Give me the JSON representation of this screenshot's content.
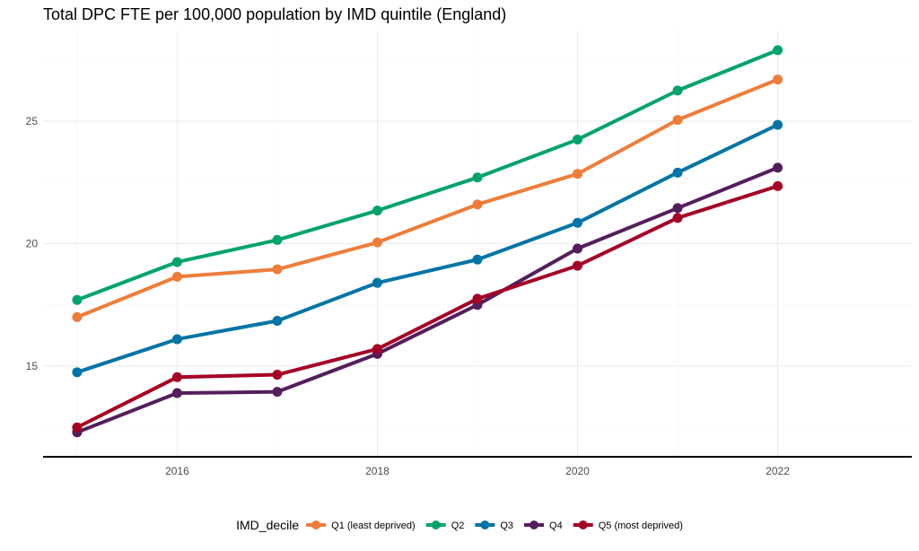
{
  "chart_data": {
    "type": "line",
    "title": "Total DPC FTE per 100,000 population by IMD quintile (England)",
    "xlabel": "",
    "ylabel": "",
    "x": [
      2015,
      2016,
      2017,
      2018,
      2019,
      2020,
      2021,
      2022
    ],
    "xlim": [
      2014.66,
      2023.34
    ],
    "ylim": [
      11.3,
      28.7
    ],
    "x_ticks": [
      2016,
      2018,
      2020,
      2022
    ],
    "y_ticks": [
      15,
      20,
      25
    ],
    "grid": true,
    "legend_position": "bottom",
    "legend_title": "IMD_decile",
    "series": [
      {
        "name": "Q1 (least deprived)",
        "color": "#EE7D3A",
        "values": [
          17.0,
          18.65,
          18.95,
          20.05,
          21.6,
          22.85,
          25.05,
          26.7
        ]
      },
      {
        "name": "Q2",
        "color": "#00A36C",
        "values": [
          17.7,
          19.25,
          20.15,
          21.35,
          22.7,
          24.25,
          26.25,
          27.9
        ]
      },
      {
        "name": "Q3",
        "color": "#0074A6",
        "values": [
          14.75,
          16.1,
          16.85,
          18.4,
          19.35,
          20.85,
          22.9,
          24.85
        ]
      },
      {
        "name": "Q4",
        "color": "#541E5C",
        "values": [
          12.3,
          13.9,
          13.95,
          15.5,
          17.5,
          19.8,
          21.45,
          23.1
        ]
      },
      {
        "name": "Q5 (most deprived)",
        "color": "#A50026",
        "values": [
          12.5,
          14.55,
          14.65,
          15.7,
          17.75,
          19.1,
          21.05,
          22.35
        ]
      }
    ]
  }
}
